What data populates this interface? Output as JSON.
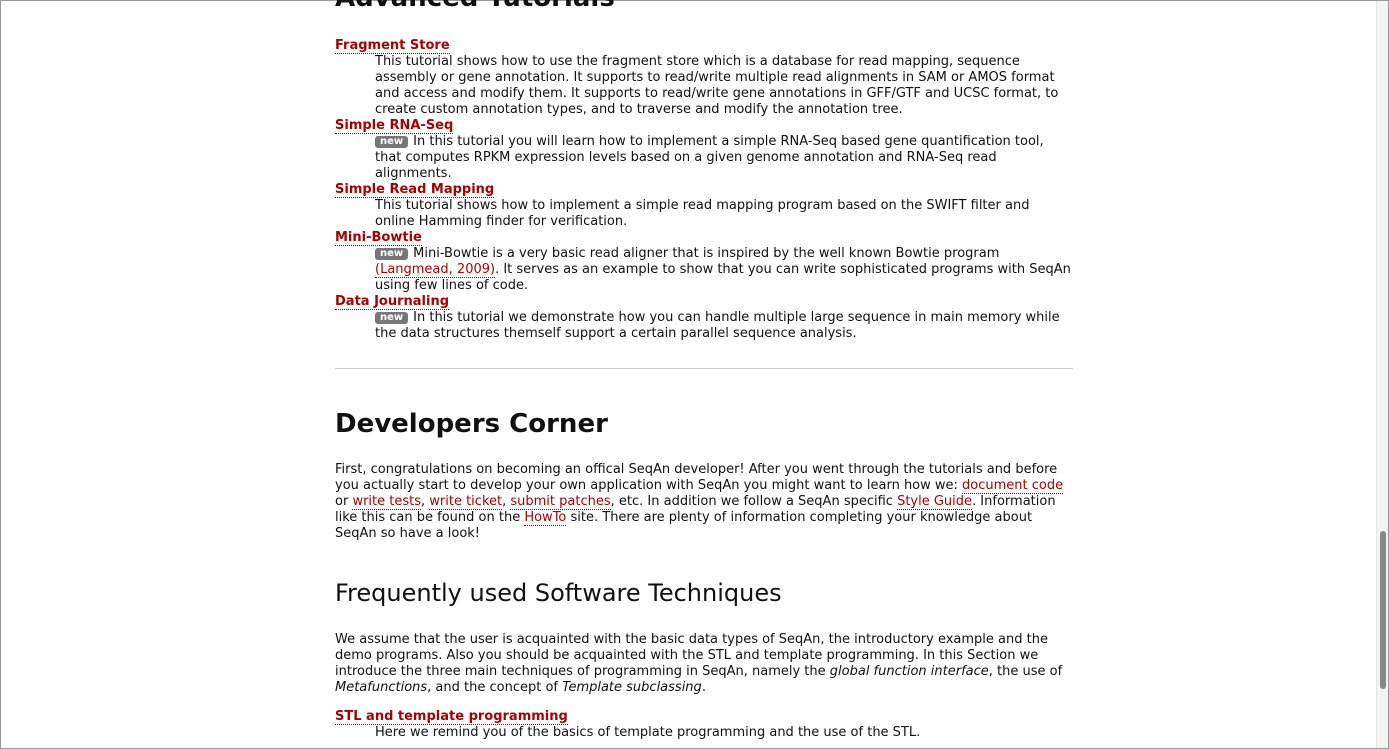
{
  "advanced_tutorials": {
    "heading": "Advanced Tutorials",
    "items": [
      {
        "title": "Fragment Store",
        "parts": [
          {
            "text": "This tutorial shows how to use the fragment store which is a database for read mapping, sequence assembly or gene annotation. It supports to read/write multiple read alignments in SAM or AMOS format and access and modify them. It supports to read/write gene annotations in GFF/GTF and UCSC format, to create custom annotation types, and to traverse and modify the annotation tree.",
            "style": "plain"
          }
        ]
      },
      {
        "title": "Simple RNA-Seq",
        "badge": "new",
        "parts": [
          {
            "text": "In this tutorial you will learn how to implement a simple RNA-Seq based gene quantification tool, that computes RPKM expression levels based on a given genome annotation and RNA-Seq read alignments.",
            "style": "plain"
          }
        ]
      },
      {
        "title": "Simple Read Mapping",
        "parts": [
          {
            "text": "This tutorial shows how to implement a simple read mapping program based on the SWIFT filter and online Hamming finder for verification.",
            "style": "plain"
          }
        ]
      },
      {
        "title": "Mini-Bowtie",
        "badge": "new",
        "parts": [
          {
            "text": "Mini-Bowtie is a very basic read aligner that is inspired by the well known Bowtie program ",
            "style": "plain"
          },
          {
            "text": "(Langmead, 2009)",
            "style": "link"
          },
          {
            "text": ". It serves as an example to show that you can write sophisticated programs with SeqAn using few lines of code.",
            "style": "plain"
          }
        ]
      },
      {
        "title": "Data Journaling",
        "badge": "new",
        "parts": [
          {
            "text": "In this tutorial we demonstrate how you can handle multiple large sequence in main memory while the data structures themself support a certain parallel sequence analysis.",
            "style": "plain"
          }
        ]
      }
    ]
  },
  "developers_corner": {
    "heading": "Developers Corner",
    "parts": [
      {
        "text": "First, congratulations on becoming an offical SeqAn developer! After you went through the tutorials and before you actually start to develop your own application with SeqAn you might want to learn how we: ",
        "style": "plain"
      },
      {
        "text": "document code",
        "style": "link"
      },
      {
        "text": " or ",
        "style": "plain"
      },
      {
        "text": "write tests",
        "style": "link"
      },
      {
        "text": ", ",
        "style": "plain"
      },
      {
        "text": "write ticket",
        "style": "link"
      },
      {
        "text": ", ",
        "style": "plain"
      },
      {
        "text": "submit patches",
        "style": "link"
      },
      {
        "text": ", etc. In addition we follow a SeqAn specific ",
        "style": "plain"
      },
      {
        "text": "Style Guide",
        "style": "link"
      },
      {
        "text": ". Information like this can be found on the ",
        "style": "plain"
      },
      {
        "text": "HowTo",
        "style": "link"
      },
      {
        "text": " site. There are plenty of information completing your knowledge about SeqAn so have a look!",
        "style": "plain"
      }
    ]
  },
  "software_techniques": {
    "heading": "Frequently used Software Techniques",
    "parts": [
      {
        "text": "We assume that the user is acquainted with the basic data types of SeqAn, the introductory example and the demo programs. Also you should be acquainted with the STL and template programming. In this Section we introduce the three main techniques of programming in SeqAn, namely the ",
        "style": "plain"
      },
      {
        "text": "global function interface",
        "style": "italic"
      },
      {
        "text": ", the use of ",
        "style": "plain"
      },
      {
        "text": "Metafunctions",
        "style": "italic"
      },
      {
        "text": ", and the concept of ",
        "style": "plain"
      },
      {
        "text": "Template subclassing",
        "style": "italic"
      },
      {
        "text": ".",
        "style": "plain"
      }
    ],
    "items": [
      {
        "title": "STL and template programming",
        "parts": [
          {
            "text": "Here we remind you of the basics of template programming and the use of the STL.",
            "style": "plain"
          }
        ]
      }
    ]
  }
}
